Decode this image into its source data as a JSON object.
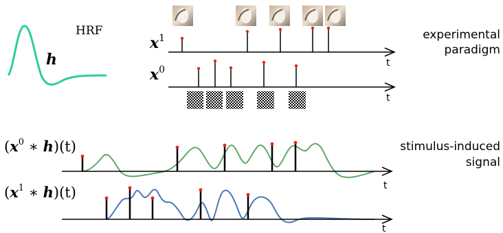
{
  "labels": {
    "hrf_title": "HRF",
    "hrf_symbol": "h",
    "x1_base": "x",
    "x1_sup": "1",
    "x0_base": "x",
    "x0_sup": "0",
    "axis_t": "t",
    "experimental_line1": "experimental",
    "experimental_line2": "paradigm",
    "stimulus_line1": "stimulus-induced",
    "stimulus_line2": "signal",
    "conv0_open": "(",
    "conv0_x": "x",
    "conv0_sup": "0",
    "conv0_star": " ∗ ",
    "conv0_h": "h",
    "conv0_t": ")(t)",
    "conv1_open": "(",
    "conv1_x": "x",
    "conv1_sup": "1",
    "conv1_star": " ∗ ",
    "conv1_h": "h",
    "conv1_t": ")(t)"
  },
  "colors": {
    "hrf": "#2ecf8f",
    "green_signal": "#5fa86a",
    "blue_signal": "#4a78b5",
    "stick": "#000000",
    "dot": "#e8231e"
  },
  "icons": {
    "stimulus_photo": "hand-object-photo",
    "checker": "checkerboard-pattern"
  }
}
